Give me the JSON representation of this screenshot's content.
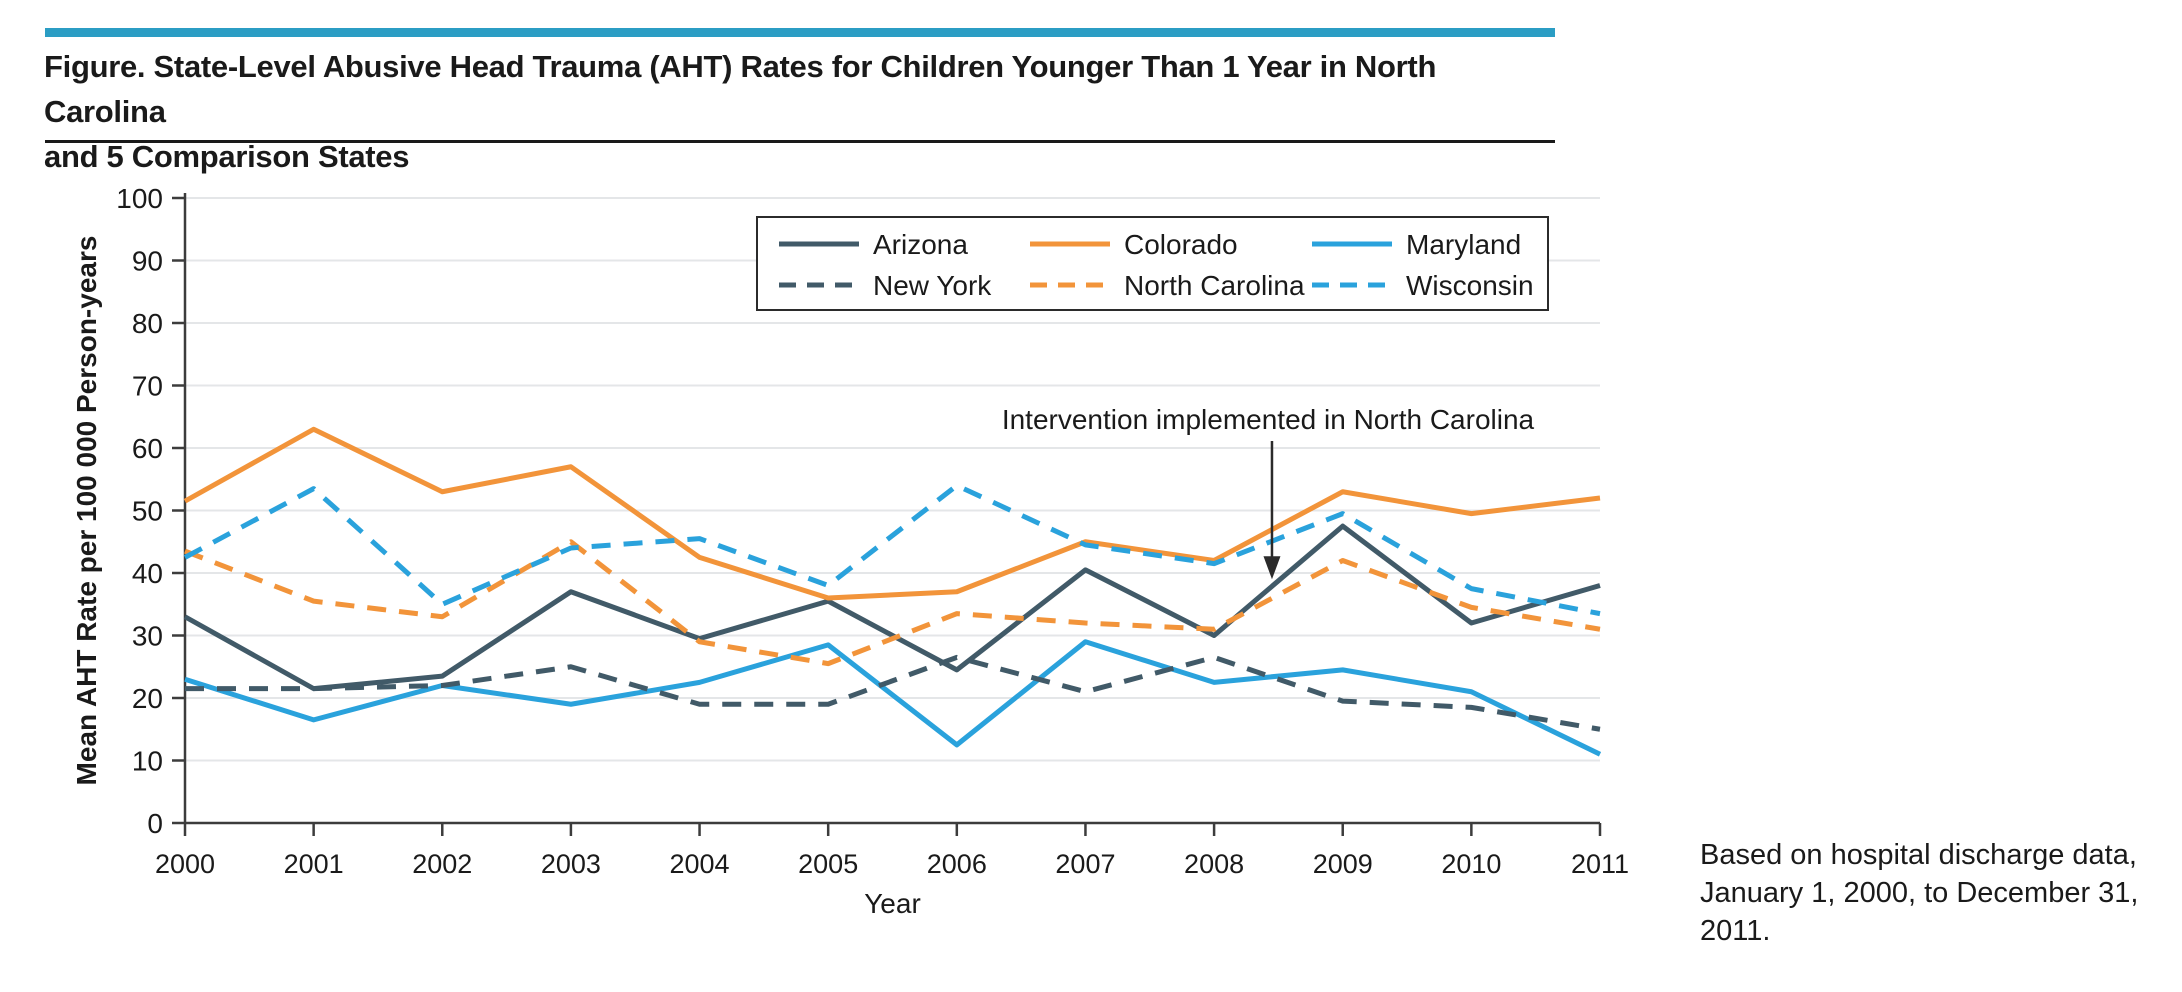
{
  "header": {
    "accent_bar_color": "#2B9DC4",
    "title_line1": "Figure. State-Level Abusive Head Trauma (AHT) Rates for Children Younger Than 1 Year in North Carolina",
    "title_line2": "and 5 Comparison States"
  },
  "note": "Based on hospital discharge data, January 1, 2000, to December 31, 2011.",
  "chart_data": {
    "type": "line",
    "xlabel": "Year",
    "ylabel": "Mean AHT Rate per 100 000 Person-years",
    "ylim": [
      0,
      100
    ],
    "ytick_interval": 10,
    "grid": true,
    "legend_position": "top-center-boxed",
    "x": [
      2000,
      2001,
      2002,
      2003,
      2004,
      2005,
      2006,
      2007,
      2008,
      2009,
      2010,
      2011
    ],
    "series": [
      {
        "name": "Arizona",
        "style": "solid",
        "color": "#415A68",
        "values": [
          33,
          21.5,
          23.5,
          37,
          29.5,
          35.5,
          24.5,
          40.5,
          30,
          47.5,
          32,
          38
        ]
      },
      {
        "name": "Colorado",
        "style": "solid",
        "color": "#F2943A",
        "values": [
          51.5,
          63,
          53,
          57,
          42.5,
          36,
          37,
          45,
          42,
          53,
          49.5,
          52
        ]
      },
      {
        "name": "Maryland",
        "style": "solid",
        "color": "#2AA2DC",
        "values": [
          23,
          16.5,
          22,
          19,
          22.5,
          28.5,
          12.5,
          29,
          22.5,
          24.5,
          21,
          11
        ]
      },
      {
        "name": "New York",
        "style": "dashed",
        "color": "#415A68",
        "values": [
          21.5,
          21.5,
          22,
          25,
          19,
          19,
          26.5,
          21,
          26.5,
          19.5,
          18.5,
          15
        ]
      },
      {
        "name": "North Carolina",
        "style": "dashed",
        "color": "#F2943A",
        "values": [
          43.5,
          35.5,
          33,
          45,
          29,
          25.5,
          33.5,
          32,
          31,
          42,
          34.5,
          31
        ]
      },
      {
        "name": "Wisconsin",
        "style": "dashed",
        "color": "#2AA2DC",
        "values": [
          42.5,
          53.5,
          35,
          44,
          45.5,
          38,
          54,
          44.5,
          41.5,
          49.5,
          37.5,
          33.5
        ]
      }
    ],
    "annotation": {
      "text": "Intervention implemented in North Carolina",
      "arrow_x_year": 2008.45,
      "arrow_tip_value": 39
    },
    "style_colors": {
      "grid": "#E4E6E8",
      "axis": "#3C3C3C",
      "text": "#1A1A1A",
      "legend_border": "#2B2B2B",
      "annotation_arrow": "#2B2B2B"
    }
  }
}
